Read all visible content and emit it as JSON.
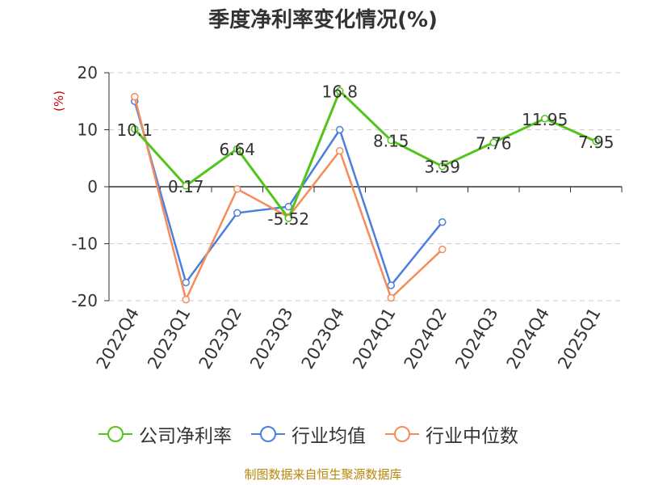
{
  "chart_data": {
    "type": "line",
    "title": "季度净利率变化情况(%)",
    "ylabel": "(%)",
    "categories": [
      "2022Q4",
      "2023Q1",
      "2023Q2",
      "2023Q3",
      "2023Q4",
      "2024Q1",
      "2024Q2",
      "2024Q3",
      "2024Q4",
      "2025Q1"
    ],
    "ylim": [
      -20,
      20
    ],
    "yticks": [
      20,
      10,
      0,
      -10,
      -20
    ],
    "grid": true,
    "legend_position": "bottom",
    "series": [
      {
        "name": "公司净利率",
        "color": "#52c41a",
        "values": [
          10.1,
          0.17,
          6.64,
          -5.52,
          16.8,
          8.15,
          3.59,
          7.76,
          11.95,
          7.95
        ],
        "labels": [
          "10.1",
          "0.17",
          "6.64",
          "-5.52",
          "16.8",
          "8.15",
          "3.59",
          "7.76",
          "11.95",
          "7.95"
        ]
      },
      {
        "name": "行业均值",
        "color": "#4a7fde",
        "values": [
          15.0,
          -16.8,
          -4.6,
          -3.5,
          10.0,
          -17.3,
          -6.2,
          null,
          null,
          null
        ]
      },
      {
        "name": "行业中位数",
        "color": "#f58c5a",
        "values": [
          15.8,
          -19.8,
          -0.4,
          -5.3,
          6.3,
          -19.5,
          -11.0,
          null,
          null,
          null
        ]
      }
    ]
  },
  "footer": "制图数据来自恒生聚源数据库"
}
